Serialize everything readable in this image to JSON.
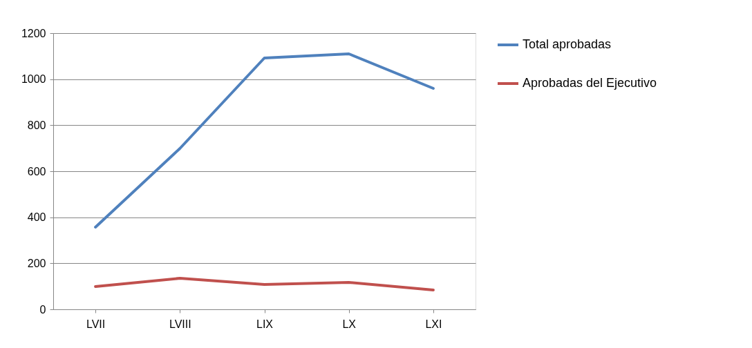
{
  "chart_data": {
    "type": "line",
    "categories": [
      "LVII",
      "LVIII",
      "LIX",
      "LX",
      "LXI"
    ],
    "series": [
      {
        "name": "Total aprobadas",
        "color": "#4f81bd",
        "values": [
          357,
          699,
          1092,
          1110,
          960
        ]
      },
      {
        "name": "Aprobadas del Ejecutivo",
        "color": "#c0504d",
        "values": [
          99,
          135,
          108,
          117,
          84
        ]
      }
    ],
    "ylim": [
      0,
      1200
    ],
    "yticks": [
      0,
      200,
      400,
      600,
      800,
      1000,
      1200
    ],
    "grid": "y",
    "legend": "right"
  }
}
